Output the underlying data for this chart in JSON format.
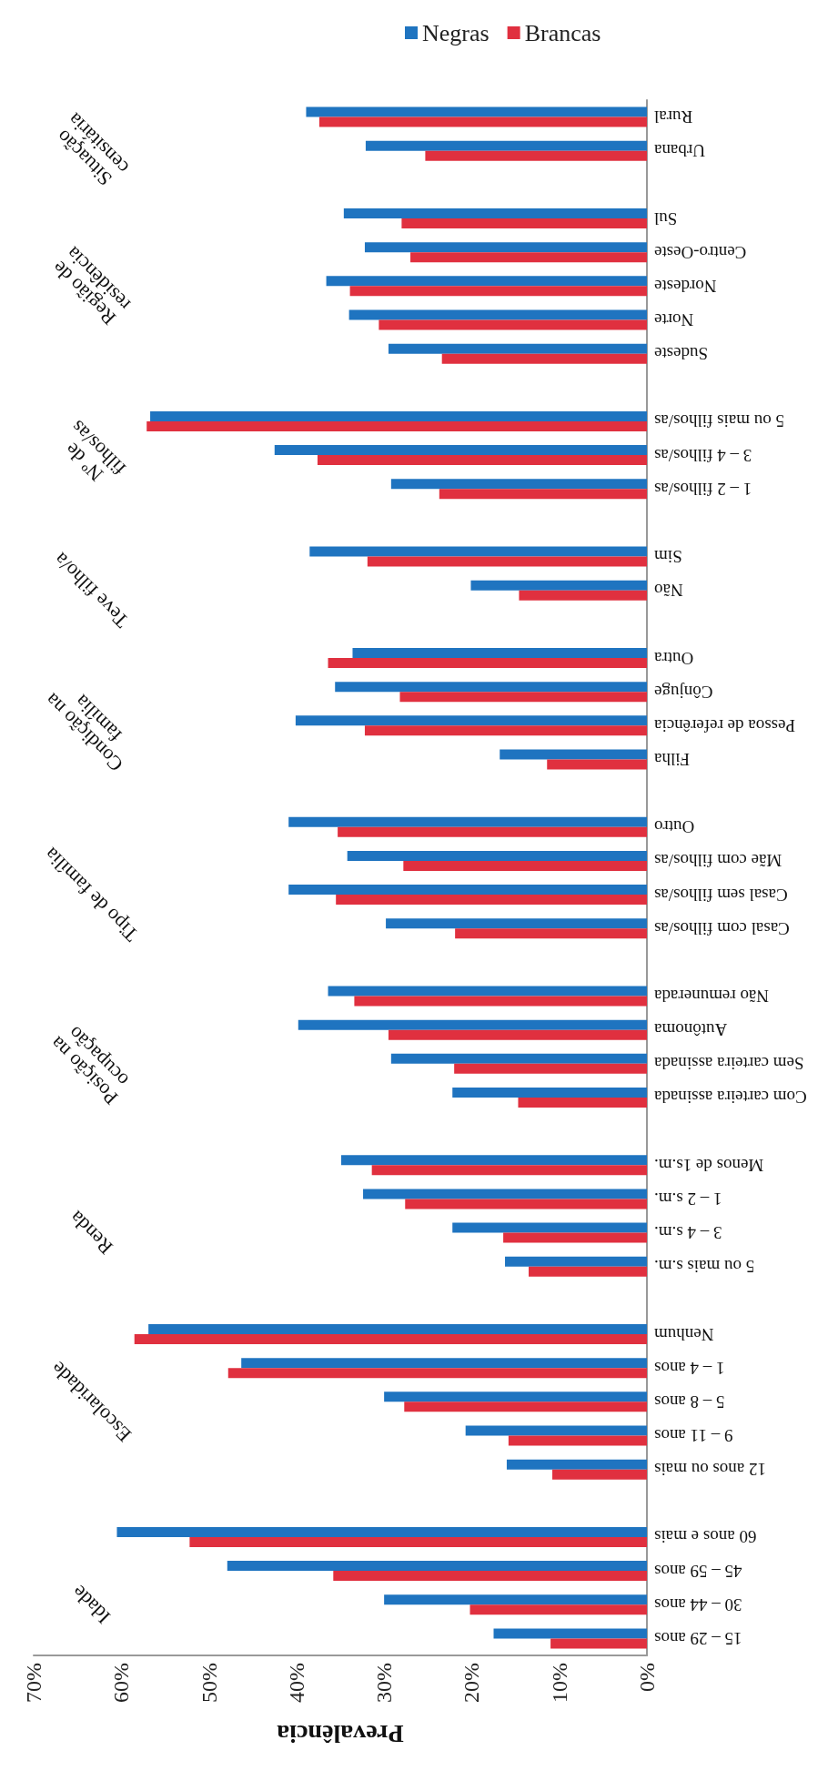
{
  "chart_data": {
    "type": "bar",
    "orientation": "horizontal",
    "xlabel": "Prevalência",
    "legend": "top",
    "grid": false,
    "categories": [
      "Rural",
      "Urbana",
      null,
      "Sul",
      "Centro-Oeste",
      "Nordeste",
      "Norte",
      "Sudeste",
      null,
      "5 ou mais filhos/as",
      "3 – 4 filhos/as",
      "1 – 2 filhos/as",
      null,
      "Sim",
      "Não",
      null,
      "Outra",
      "Cônjuge",
      "Pessoa de referência",
      "Filha",
      null,
      "Outro",
      "Mãe com filhos/as",
      "Casal sem filhos/as",
      "Casal com filhos/as",
      null,
      "Não remunerada",
      "Autônoma",
      "Sem carteira assinada",
      "Com carteira assinada",
      null,
      "Menos de 1s.m.",
      "1 – 2 s.m.",
      "3 – 4 s.m.",
      "5 ou mais s.m.",
      null,
      "Nenhum",
      "1 – 4 anos",
      "5 – 8 anos",
      "9 – 11 anos",
      "12 anos ou mais",
      null,
      "60 anos e mais",
      "45 – 59 anos",
      "30 – 44 anos",
      "15 – 29 anos"
    ],
    "series": [
      {
        "name": "Negras",
        "color": "#1f74c0",
        "values": [
          38.9,
          32.1,
          null,
          34.6,
          32.2,
          36.6,
          34.0,
          29.5,
          null,
          56.7,
          42.5,
          29.2,
          null,
          38.5,
          20.1,
          null,
          33.6,
          35.6,
          40.1,
          16.8,
          null,
          40.9,
          34.2,
          40.9,
          29.8,
          null,
          36.4,
          39.8,
          29.2,
          22.2,
          null,
          34.9,
          32.4,
          22.2,
          16.2,
          null,
          56.9,
          46.3,
          30.0,
          20.7,
          16.0,
          null,
          60.5,
          47.9,
          30.0,
          17.5
        ]
      },
      {
        "name": "Brancas",
        "color": "#e0303f",
        "values": [
          37.4,
          25.3,
          null,
          28.0,
          27.0,
          33.9,
          30.6,
          23.4,
          null,
          57.1,
          37.6,
          23.7,
          null,
          31.9,
          14.6,
          null,
          36.4,
          28.2,
          32.2,
          11.4,
          null,
          35.3,
          27.8,
          35.5,
          21.9,
          null,
          33.4,
          29.5,
          22.0,
          14.7,
          null,
          31.4,
          27.6,
          16.4,
          13.5,
          null,
          58.5,
          47.8,
          27.7,
          15.8,
          10.8,
          null,
          52.2,
          35.8,
          20.2,
          11.0
        ]
      }
    ],
    "xlim": [
      70,
      0
    ],
    "xticks": [
      {
        "value": 70,
        "label": "70%"
      },
      {
        "value": 60,
        "label": "60%"
      },
      {
        "value": 50,
        "label": "50%"
      },
      {
        "value": 40,
        "label": "40%"
      },
      {
        "value": 30,
        "label": "30%"
      },
      {
        "value": 20,
        "label": "20%"
      },
      {
        "value": 10,
        "label": "10%"
      },
      {
        "value": 0,
        "label": "0%"
      }
    ],
    "annotations": [
      "Situação\ncensitária",
      "Região de\nresidência",
      "Nº de\nfilhos/as",
      "Teve filho/a",
      "Condição na\nfamília",
      "Tipo de família",
      "Posição na\nocupação",
      "Renda",
      "Escolaridade",
      "Idade"
    ]
  }
}
